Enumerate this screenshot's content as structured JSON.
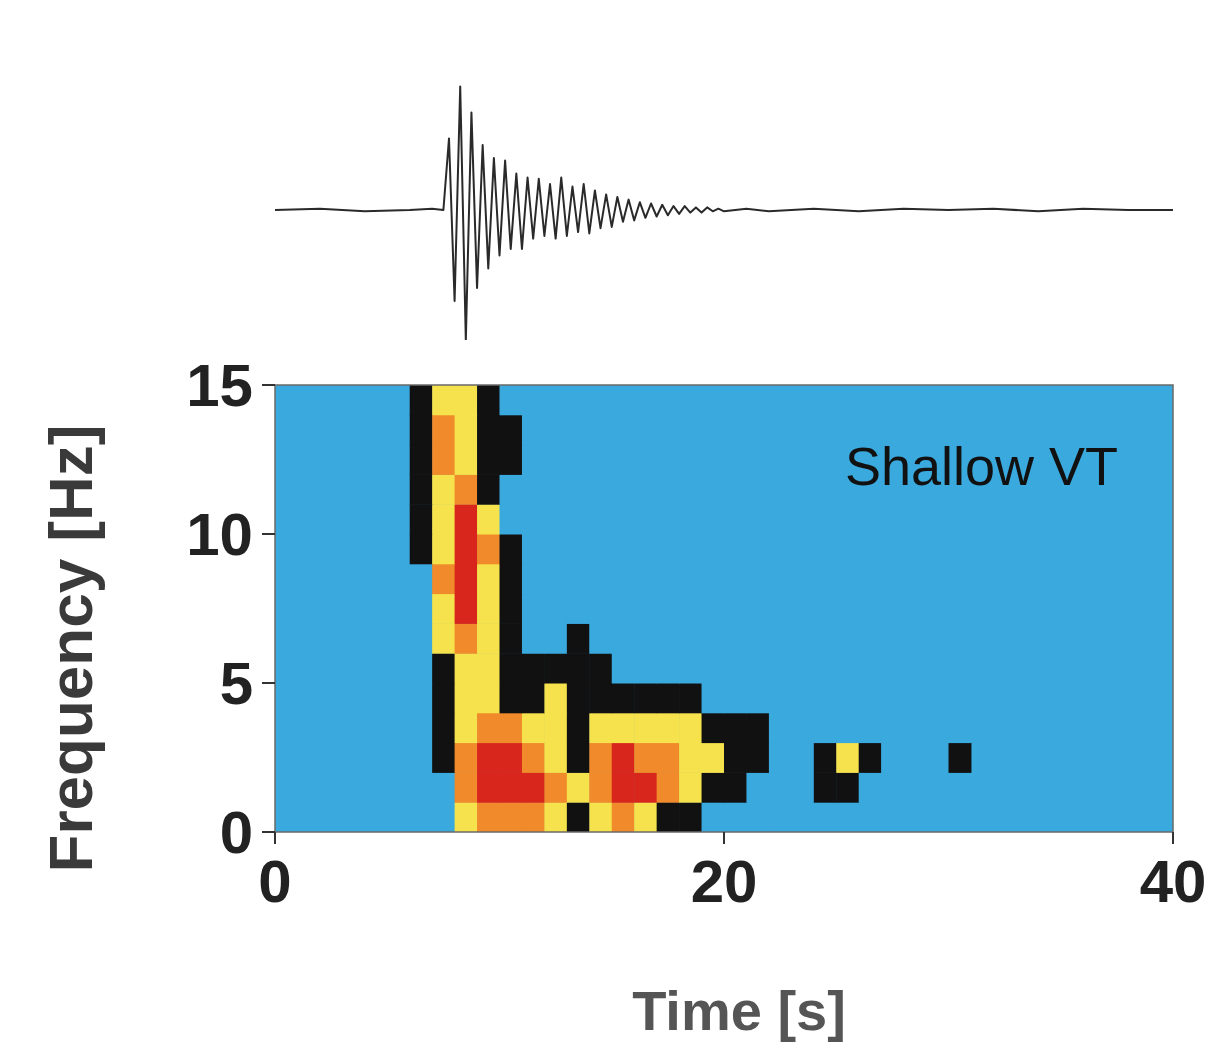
{
  "chart_data": [
    {
      "type": "line",
      "color": "#2a2a2a",
      "tick_labels": false,
      "xlim": [
        0,
        40
      ],
      "ylim": [
        -1,
        1
      ],
      "x": [
        0,
        2,
        4,
        6,
        7,
        7.5,
        7.75,
        8,
        8.25,
        8.5,
        8.75,
        9,
        9.25,
        9.5,
        9.75,
        10,
        10.25,
        10.5,
        10.75,
        11,
        11.25,
        11.5,
        11.75,
        12,
        12.25,
        12.5,
        12.75,
        13,
        13.25,
        13.5,
        13.75,
        14,
        14.25,
        14.5,
        14.75,
        15,
        15.25,
        15.5,
        15.75,
        16,
        16.25,
        16.5,
        16.75,
        17,
        17.25,
        17.5,
        17.75,
        18,
        18.25,
        18.5,
        18.75,
        19,
        19.25,
        19.5,
        19.75,
        20,
        21,
        22,
        24,
        26,
        28,
        30,
        32,
        34,
        36,
        38,
        40
      ],
      "values": [
        0,
        0.01,
        -0.01,
        0,
        0.01,
        0,
        0.55,
        -0.7,
        0.95,
        -1.0,
        0.75,
        -0.6,
        0.5,
        -0.45,
        0.4,
        -0.35,
        0.38,
        -0.3,
        0.28,
        -0.3,
        0.25,
        -0.22,
        0.24,
        -0.2,
        0.2,
        -0.22,
        0.25,
        -0.2,
        0.18,
        -0.17,
        0.2,
        -0.18,
        0.15,
        -0.14,
        0.12,
        -0.13,
        0.1,
        -0.09,
        0.08,
        -0.08,
        0.06,
        -0.06,
        0.05,
        -0.05,
        0.04,
        -0.04,
        0.03,
        -0.03,
        0.03,
        -0.02,
        0.02,
        -0.02,
        0.02,
        -0.01,
        0.01,
        -0.01,
        0.01,
        -0.01,
        0.01,
        -0.01,
        0.01,
        0,
        0.01,
        -0.01,
        0.01,
        0,
        0
      ]
    },
    {
      "type": "heatmap",
      "annotation": "Shallow VT",
      "xlabel": "Time [s]",
      "ylabel": "Frequency [Hz]",
      "xlim": [
        0,
        40
      ],
      "ylim": [
        0,
        15
      ],
      "xticks": [
        0,
        20,
        40
      ],
      "yticks": [
        0,
        5,
        10,
        15
      ],
      "colors": [
        "#3aa9de",
        "#111111",
        "#f6e24c",
        "#f08a2a",
        "#d8261d"
      ],
      "x_bins": [
        6,
        7,
        8,
        9,
        10,
        11,
        12,
        13,
        14,
        15,
        16,
        17,
        18,
        19,
        20,
        21,
        22,
        23,
        24,
        25,
        26,
        27,
        28,
        29,
        30,
        31
      ],
      "y_bins": [
        0,
        1,
        2,
        3,
        4,
        5,
        6,
        7,
        8,
        9,
        10,
        11,
        12,
        13,
        14,
        15
      ],
      "cells": [
        [
          0,
          0,
          2,
          3,
          3,
          3,
          2,
          1,
          2,
          3,
          2,
          1,
          1,
          0,
          0,
          0,
          0,
          0,
          0,
          0,
          0,
          0,
          0,
          0,
          0
        ],
        [
          0,
          0,
          3,
          4,
          4,
          4,
          3,
          2,
          3,
          4,
          4,
          3,
          2,
          1,
          1,
          0,
          0,
          0,
          1,
          1,
          0,
          0,
          0,
          0,
          0
        ],
        [
          0,
          1,
          3,
          4,
          4,
          3,
          2,
          1,
          3,
          4,
          3,
          3,
          2,
          2,
          1,
          1,
          0,
          0,
          1,
          2,
          1,
          0,
          0,
          0,
          1
        ],
        [
          0,
          1,
          2,
          3,
          3,
          2,
          2,
          1,
          2,
          2,
          2,
          2,
          2,
          1,
          1,
          1,
          0,
          0,
          0,
          0,
          0,
          0,
          0,
          0,
          0
        ],
        [
          0,
          1,
          2,
          2,
          1,
          1,
          2,
          1,
          1,
          1,
          1,
          1,
          1,
          0,
          0,
          0,
          0,
          0,
          0,
          0,
          0,
          0,
          0,
          0,
          0
        ],
        [
          0,
          1,
          2,
          2,
          1,
          1,
          1,
          1,
          1,
          0,
          0,
          0,
          0,
          0,
          0,
          0,
          0,
          0,
          0,
          0,
          0,
          0,
          0,
          0,
          0
        ],
        [
          0,
          2,
          3,
          2,
          1,
          0,
          0,
          1,
          0,
          0,
          0,
          0,
          0,
          0,
          0,
          0,
          0,
          0,
          0,
          0,
          0,
          0,
          0,
          0,
          0
        ],
        [
          0,
          2,
          4,
          2,
          1,
          0,
          0,
          0,
          0,
          0,
          0,
          0,
          0,
          0,
          0,
          0,
          0,
          0,
          0,
          0,
          0,
          0,
          0,
          0,
          0
        ],
        [
          0,
          3,
          4,
          2,
          1,
          0,
          0,
          0,
          0,
          0,
          0,
          0,
          0,
          0,
          0,
          0,
          0,
          0,
          0,
          0,
          0,
          0,
          0,
          0,
          0
        ],
        [
          1,
          2,
          4,
          3,
          1,
          0,
          0,
          0,
          0,
          0,
          0,
          0,
          0,
          0,
          0,
          0,
          0,
          0,
          0,
          0,
          0,
          0,
          0,
          0,
          0
        ],
        [
          1,
          2,
          4,
          2,
          0,
          0,
          0,
          0,
          0,
          0,
          0,
          0,
          0,
          0,
          0,
          0,
          0,
          0,
          0,
          0,
          0,
          0,
          0,
          0,
          0
        ],
        [
          1,
          2,
          3,
          1,
          0,
          0,
          0,
          0,
          0,
          0,
          0,
          0,
          0,
          0,
          0,
          0,
          0,
          0,
          0,
          0,
          0,
          0,
          0,
          0,
          0
        ],
        [
          1,
          3,
          2,
          1,
          1,
          0,
          0,
          0,
          0,
          0,
          0,
          0,
          0,
          0,
          0,
          0,
          0,
          0,
          0,
          0,
          0,
          0,
          0,
          0,
          0
        ],
        [
          1,
          3,
          2,
          1,
          1,
          0,
          0,
          0,
          0,
          0,
          0,
          0,
          0,
          0,
          0,
          0,
          0,
          0,
          0,
          0,
          0,
          0,
          0,
          0,
          0
        ],
        [
          1,
          2,
          2,
          1,
          0,
          0,
          0,
          0,
          0,
          0,
          0,
          0,
          0,
          0,
          0,
          0,
          0,
          0,
          0,
          0,
          0,
          0,
          0,
          0,
          0
        ]
      ]
    }
  ]
}
